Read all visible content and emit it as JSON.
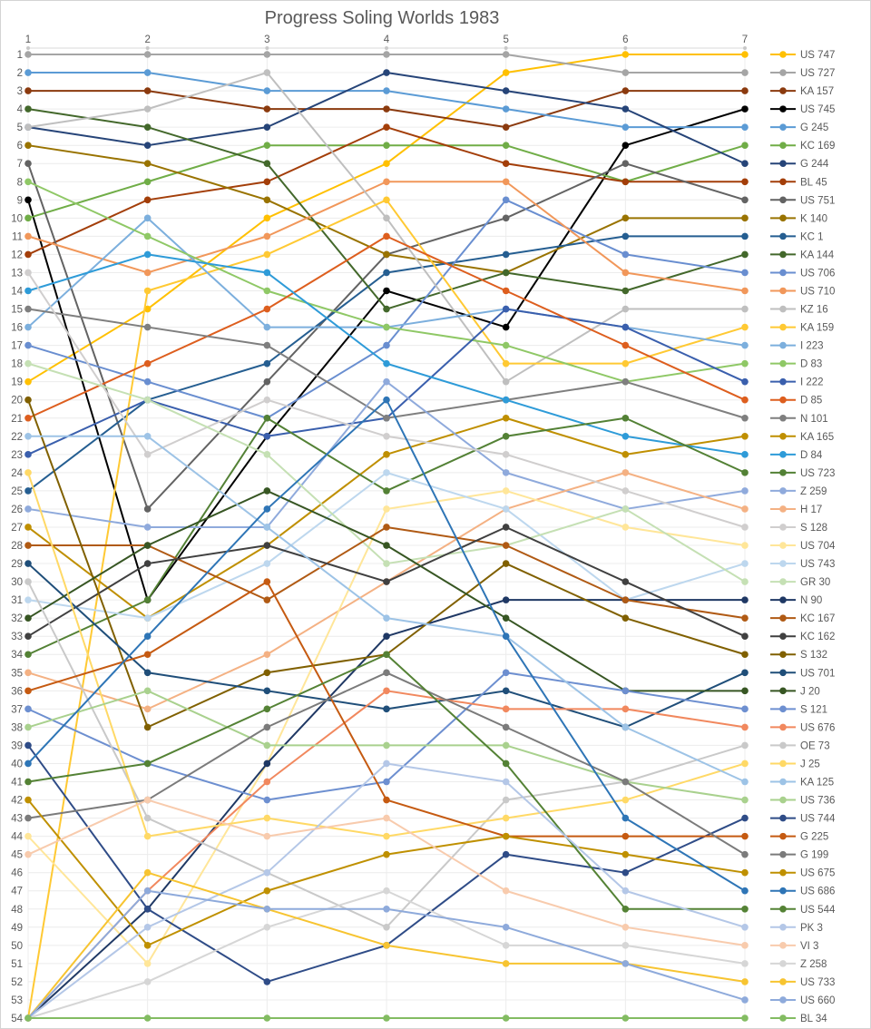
{
  "title": "Progress Soling Worlds 1983",
  "colors": {
    "title_text": "#595959",
    "axis_text": "#595959",
    "gridline": "#ececec",
    "axis_line": "#d9d9d9",
    "background": "#ffffff"
  },
  "chart_data": {
    "type": "line",
    "subtype": "bump-rank-chart",
    "title": "Progress Soling Worlds 1983",
    "xlabel": "",
    "ylabel": "",
    "x": [
      1,
      2,
      3,
      4,
      5,
      6,
      7
    ],
    "x_axis_position": "top",
    "y_axis_inverted": true,
    "ylim": [
      1,
      54
    ],
    "y_ticks_every": 1,
    "grid": true,
    "legend_position": "right",
    "series": [
      {
        "name": "US 747",
        "color": "#FFC000",
        "values": [
          19,
          15,
          10,
          7,
          2,
          1,
          1
        ]
      },
      {
        "name": "US 727",
        "color": "#A5A5A5",
        "values": [
          1,
          1,
          1,
          1,
          1,
          2,
          2
        ]
      },
      {
        "name": "KA 157",
        "color": "#8B3A0E",
        "values": [
          3,
          3,
          4,
          4,
          5,
          3,
          3
        ]
      },
      {
        "name": "US 745",
        "color": "#000000",
        "values": [
          9,
          31,
          22,
          14,
          16,
          6,
          4
        ]
      },
      {
        "name": "G 245",
        "color": "#5B9BD5",
        "values": [
          2,
          2,
          3,
          3,
          4,
          5,
          5
        ]
      },
      {
        "name": "KC 169",
        "color": "#70AD47",
        "values": [
          10,
          8,
          6,
          6,
          6,
          8,
          6
        ]
      },
      {
        "name": "G 244",
        "color": "#264478",
        "values": [
          5,
          6,
          5,
          2,
          3,
          4,
          7
        ]
      },
      {
        "name": "BL 45",
        "color": "#A33E09",
        "values": [
          12,
          9,
          8,
          5,
          7,
          8,
          8
        ]
      },
      {
        "name": "US 751",
        "color": "#636363",
        "values": [
          7,
          26,
          19,
          12,
          10,
          7,
          9
        ]
      },
      {
        "name": "K 140",
        "color": "#997300",
        "values": [
          6,
          7,
          9,
          12,
          13,
          10,
          10
        ]
      },
      {
        "name": "KC 1",
        "color": "#255E91",
        "values": [
          25,
          20,
          18,
          13,
          12,
          11,
          11
        ]
      },
      {
        "name": "KA 144",
        "color": "#43682B",
        "values": [
          4,
          5,
          7,
          15,
          13,
          14,
          12
        ]
      },
      {
        "name": "US 706",
        "color": "#698ED0",
        "values": [
          17,
          19,
          21,
          17,
          9,
          12,
          13
        ]
      },
      {
        "name": "US 710",
        "color": "#F1975A",
        "values": [
          11,
          13,
          11,
          8,
          8,
          13,
          14
        ]
      },
      {
        "name": "KZ 16",
        "color": "#BFBFBF",
        "values": [
          5,
          4,
          2,
          10,
          19,
          15,
          15
        ]
      },
      {
        "name": "KA 159",
        "color": "#FFC933",
        "values": [
          54,
          14,
          12,
          9,
          18,
          18,
          16
        ]
      },
      {
        "name": "I 223",
        "color": "#7CAFDD",
        "values": [
          16,
          10,
          16,
          16,
          15,
          16,
          17
        ]
      },
      {
        "name": "D 83",
        "color": "#8FC866",
        "values": [
          8,
          11,
          14,
          16,
          17,
          19,
          18
        ]
      },
      {
        "name": "I 222",
        "color": "#3A5FAD",
        "values": [
          23,
          20,
          22,
          21,
          15,
          16,
          19
        ]
      },
      {
        "name": "D 85",
        "color": "#DD5E1E",
        "values": [
          21,
          18,
          15,
          11,
          14,
          17,
          20
        ]
      },
      {
        "name": "N 101",
        "color": "#7F7F7F",
        "values": [
          15,
          16,
          17,
          21,
          20,
          19,
          21
        ]
      },
      {
        "name": "KA 165",
        "color": "#BF8F00",
        "values": [
          27,
          32,
          28,
          23,
          21,
          23,
          22
        ]
      },
      {
        "name": "D 84",
        "color": "#2E9BD8",
        "values": [
          14,
          12,
          13,
          18,
          20,
          22,
          23
        ]
      },
      {
        "name": "US 723",
        "color": "#538135",
        "values": [
          34,
          31,
          21,
          25,
          22,
          21,
          24
        ]
      },
      {
        "name": "Z 259",
        "color": "#8FAADC",
        "values": [
          26,
          27,
          27,
          19,
          24,
          26,
          25
        ]
      },
      {
        "name": "H 17",
        "color": "#F4B183",
        "values": [
          35,
          37,
          34,
          30,
          26,
          24,
          26
        ]
      },
      {
        "name": "S 128",
        "color": "#D0CECE",
        "values": [
          13,
          23,
          20,
          22,
          23,
          25,
          27
        ]
      },
      {
        "name": "US 704",
        "color": "#FFE699",
        "values": [
          44,
          51,
          40,
          26,
          25,
          27,
          28
        ]
      },
      {
        "name": "US 743",
        "color": "#BDD7EE",
        "values": [
          31,
          32,
          29,
          24,
          26,
          31,
          29
        ]
      },
      {
        "name": "GR 30",
        "color": "#C5E0B4",
        "values": [
          18,
          20,
          23,
          29,
          28,
          26,
          30
        ]
      },
      {
        "name": "N 90",
        "color": "#1F3864",
        "values": [
          54,
          48,
          40,
          33,
          31,
          31,
          31
        ]
      },
      {
        "name": "KC 167",
        "color": "#B05A14",
        "values": [
          28,
          28,
          31,
          27,
          28,
          31,
          32
        ]
      },
      {
        "name": "KC 162",
        "color": "#404040",
        "values": [
          33,
          29,
          28,
          30,
          27,
          30,
          33
        ]
      },
      {
        "name": "S 132",
        "color": "#806000",
        "values": [
          20,
          38,
          35,
          34,
          29,
          32,
          34
        ]
      },
      {
        "name": "US 701",
        "color": "#1F4E79",
        "values": [
          29,
          35,
          36,
          37,
          36,
          38,
          35
        ]
      },
      {
        "name": "J 20",
        "color": "#375623",
        "values": [
          32,
          28,
          25,
          28,
          32,
          36,
          36
        ]
      },
      {
        "name": "S 121",
        "color": "#6D8FD0",
        "values": [
          37,
          40,
          42,
          41,
          35,
          36,
          37
        ]
      },
      {
        "name": "US 676",
        "color": "#F1885E",
        "values": [
          54,
          47,
          41,
          36,
          37,
          37,
          38
        ]
      },
      {
        "name": "OE 73",
        "color": "#C9C9C9",
        "values": [
          30,
          43,
          46,
          49,
          42,
          41,
          39
        ]
      },
      {
        "name": "J 25",
        "color": "#FFD966",
        "values": [
          24,
          44,
          43,
          44,
          43,
          42,
          40
        ]
      },
      {
        "name": "KA 125",
        "color": "#9DC3E6",
        "values": [
          22,
          22,
          27,
          32,
          33,
          38,
          41
        ]
      },
      {
        "name": "US 736",
        "color": "#A9D18E",
        "values": [
          38,
          36,
          39,
          39,
          39,
          41,
          42
        ]
      },
      {
        "name": "US 744",
        "color": "#2F4C87",
        "values": [
          39,
          48,
          52,
          50,
          45,
          46,
          43
        ]
      },
      {
        "name": "G 225",
        "color": "#C55A11",
        "values": [
          36,
          34,
          30,
          42,
          44,
          44,
          44
        ]
      },
      {
        "name": "G 199",
        "color": "#7B7B7B",
        "values": [
          43,
          42,
          38,
          35,
          38,
          41,
          45
        ]
      },
      {
        "name": "US 675",
        "color": "#BF9000",
        "values": [
          42,
          50,
          47,
          45,
          44,
          45,
          46
        ]
      },
      {
        "name": "US 686",
        "color": "#2E75B6",
        "values": [
          40,
          33,
          26,
          20,
          33,
          43,
          47
        ]
      },
      {
        "name": "US 544",
        "color": "#548235",
        "values": [
          41,
          40,
          37,
          34,
          40,
          48,
          48
        ]
      },
      {
        "name": "PK 3",
        "color": "#B4C7E7",
        "values": [
          54,
          49,
          46,
          40,
          41,
          47,
          49
        ]
      },
      {
        "name": "VI 3",
        "color": "#F8CBAD",
        "values": [
          45,
          42,
          44,
          43,
          47,
          49,
          50
        ]
      },
      {
        "name": "Z 258",
        "color": "#D6D6D6",
        "values": [
          54,
          52,
          49,
          47,
          50,
          50,
          51
        ]
      },
      {
        "name": "US 733",
        "color": "#F7C431",
        "values": [
          54,
          46,
          48,
          50,
          51,
          51,
          52
        ]
      },
      {
        "name": "US 660",
        "color": "#8EAADB",
        "values": [
          54,
          47,
          48,
          48,
          49,
          51,
          53
        ]
      },
      {
        "name": "BL 34",
        "color": "#83BC62",
        "values": [
          54,
          54,
          54,
          54,
          54,
          54,
          54
        ]
      }
    ]
  }
}
